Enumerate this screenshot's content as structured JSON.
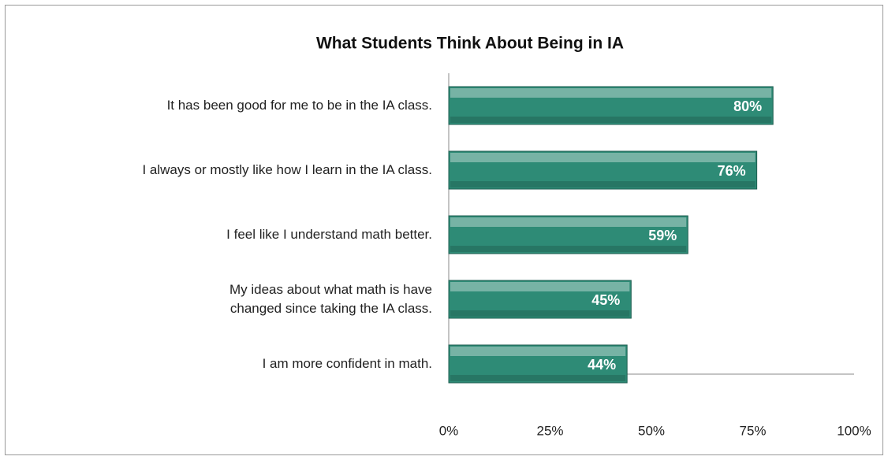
{
  "chart_data": {
    "type": "bar",
    "orientation": "horizontal",
    "title": "What Students Think About Being in IA",
    "categories": [
      "It has been good for me to be in the IA class.",
      "I always or mostly like how I learn in the IA class.",
      "I feel like I understand math better.",
      "My ideas about what math is have changed since taking the IA class.",
      "I am more confident in math."
    ],
    "values": [
      80,
      76,
      59,
      45,
      44
    ],
    "value_labels": [
      "80%",
      "76%",
      "59%",
      "45%",
      "44%"
    ],
    "color": "#2e8b76",
    "xlim": [
      0,
      100
    ],
    "xticks": [
      {
        "value": 0,
        "label": "0%"
      },
      {
        "value": 25,
        "label": "25%"
      },
      {
        "value": 50,
        "label": "50%"
      },
      {
        "value": 75,
        "label": "75%"
      },
      {
        "value": 100,
        "label": "100%"
      }
    ],
    "grid": false
  }
}
